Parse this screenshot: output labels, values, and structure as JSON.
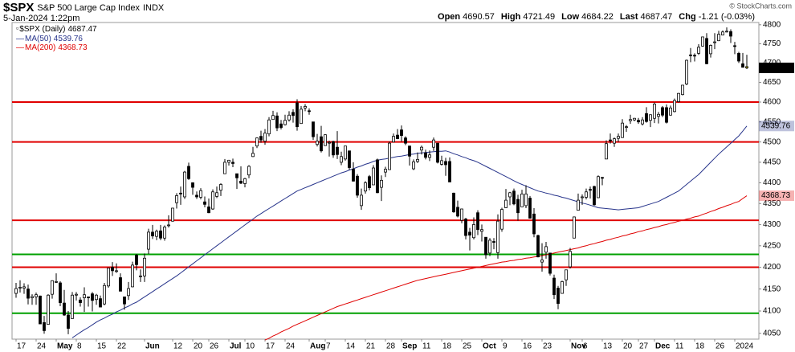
{
  "chart_data": {
    "type": "candlestick",
    "symbol": "$SPX",
    "name": "S&P 500 Large Cap Index",
    "exchange": "INDX",
    "timestamp": "5-Jan-2024 1:22pm",
    "copyright": "© StockCharts.com",
    "price_series_name": "$SPX (Daily)",
    "quote_labels": {
      "open": "Open",
      "high": "High",
      "low": "Low",
      "last": "Last",
      "change": "Chg"
    },
    "change_label": "-1.21 (-0.03%)",
    "log_scale": true,
    "ylim": [
      4037,
      4806
    ],
    "yticks": [
      4050,
      4100,
      4150,
      4200,
      4250,
      4300,
      4350,
      4400,
      4450,
      4500,
      4550,
      4600,
      4650,
      4700,
      4750,
      4800
    ],
    "up_color": "#ffffff",
    "down_color": "#000000",
    "current_color": "#f0e000",
    "categories": [
      "17",
      null,
      null,
      null,
      null,
      "24",
      null,
      null,
      null,
      null,
      "May",
      null,
      null,
      null,
      null,
      "8",
      null,
      null,
      null,
      null,
      "15",
      null,
      null,
      null,
      null,
      "22",
      null,
      null,
      null,
      null,
      null,
      null,
      "Jun",
      null,
      null,
      null,
      null,
      null,
      null,
      "12",
      null,
      null,
      null,
      null,
      "20",
      null,
      null,
      null,
      "26",
      null,
      null,
      null,
      null,
      "Jul",
      null,
      null,
      null,
      "10",
      null,
      null,
      null,
      null,
      "17",
      null,
      null,
      null,
      null,
      "24",
      null,
      null,
      null,
      null,
      null,
      "Aug",
      null,
      null,
      null,
      "7",
      null,
      null,
      null,
      null,
      "14",
      null,
      null,
      null,
      null,
      "21",
      null,
      null,
      null,
      null,
      "28",
      null,
      null,
      null,
      "Sep",
      null,
      null,
      null,
      null,
      "11",
      null,
      null,
      null,
      null,
      "18",
      null,
      null,
      null,
      null,
      "25",
      null,
      null,
      null,
      null,
      "Oct",
      null,
      null,
      null,
      null,
      "9",
      null,
      null,
      null,
      null,
      "16",
      null,
      null,
      null,
      null,
      "23",
      null,
      null,
      null,
      null,
      null,
      null,
      "Nov",
      null,
      null,
      "6",
      null,
      null,
      null,
      null,
      "13",
      null,
      null,
      null,
      null,
      "20",
      null,
      null,
      null,
      "27",
      null,
      null,
      null,
      "Dec",
      null,
      null,
      null,
      null,
      "11",
      null,
      null,
      null,
      null,
      "18",
      null,
      null,
      null,
      null,
      "26",
      null,
      null,
      null,
      null,
      "2024",
      null,
      null,
      null
    ],
    "open": [
      4140,
      4153,
      4152,
      4150,
      4130,
      4132,
      4134,
      4074,
      4070,
      4138,
      4166,
      4164,
      4118,
      4091,
      4083,
      4136,
      4125,
      4130,
      4132,
      4139,
      4126,
      4128,
      4116,
      4157,
      4200,
      4191,
      4176,
      4132,
      4135,
      4155,
      4228,
      4180,
      4180,
      4242,
      4282,
      4272,
      4285,
      4268,
      4299,
      4308,
      4352,
      4375,
      4366,
      4440,
      4400,
      4370,
      4365,
      4354,
      4342,
      4337,
      4367,
      4382,
      4422,
      4450,
      4450,
      4422,
      4404,
      4398,
      4419,
      4464,
      4490,
      4514,
      4502,
      4520,
      4556,
      4565,
      4545,
      4543,
      4555,
      4574,
      4598,
      4546,
      4585,
      4578,
      4550,
      4494,
      4513,
      4491,
      4498,
      4501,
      4487,
      4450,
      4458,
      4478,
      4433,
      4416,
      4345,
      4380,
      4415,
      4395,
      4456,
      4389,
      4426,
      4432,
      4500,
      4517,
      4530,
      4510,
      4490,
      4434,
      4452,
      4480,
      4473,
      4462,
      4487,
      4497,
      4445,
      4452,
      4452,
      4375,
      4341,
      4310,
      4313,
      4282,
      4269,
      4328,
      4284,
      4270,
      4233,
      4260,
      4234,
      4289,
      4340,
      4366,
      4380,
      4360,
      4342,
      4345,
      4363,
      4325,
      4274,
      4212,
      4235,
      4233,
      4175,
      4152,
      4140,
      4171,
      4201,
      4268,
      4334,
      4364,
      4365,
      4384,
      4391,
      4364,
      4413,
      4458,
      4505,
      4497,
      4509,
      4511,
      4538,
      4553,
      4555,
      4554,
      4545,
      4571,
      4554,
      4559,
      4564,
      4586,
      4586,
      4567,
      4576,
      4601,
      4619,
      4646,
      4721,
      4720,
      4725,
      4744,
      4764,
      4724,
      4754,
      4758,
      4773,
      4782,
      4782,
      4745,
      4725,
      4698,
      4690.57
    ],
    "high": [
      4164,
      4170,
      4163,
      4160,
      4138,
      4142,
      4135,
      4089,
      4138,
      4170,
      4186,
      4168,
      4148,
      4100,
      4143,
      4143,
      4131,
      4154,
      4132,
      4143,
      4139,
      4135,
      4164,
      4198,
      4212,
      4209,
      4186,
      4132,
      4166,
      4213,
      4231,
      4195,
      4232,
      4290,
      4299,
      4288,
      4299,
      4298,
      4322,
      4340,
      4375,
      4391,
      4429,
      4449,
      4401,
      4379,
      4387,
      4367,
      4362,
      4384,
      4391,
      4399,
      4458,
      4456,
      4459,
      4422,
      4440,
      4412,
      4443,
      4488,
      4511,
      4528,
      4532,
      4562,
      4578,
      4574,
      4555,
      4568,
      4577,
      4582,
      4607,
      4590,
      4595,
      4584,
      4550,
      4520,
      4540,
      4519,
      4503,
      4503,
      4527,
      4476,
      4490,
      4478,
      4450,
      4421,
      4386,
      4404,
      4419,
      4443,
      4459,
      4418,
      4439,
      4501,
      4521,
      4532,
      4541,
      4514,
      4490,
      4457,
      4474,
      4491,
      4481,
      4479,
      4511,
      4497,
      4466,
      4461,
      4462,
      4376,
      4357,
      4338,
      4316,
      4292,
      4317,
      4334,
      4300,
      4270,
      4268,
      4268,
      4324,
      4340,
      4385,
      4378,
      4386,
      4371,
      4383,
      4394,
      4368,
      4339,
      4276,
      4256,
      4259,
      4233,
      4183,
      4157,
      4169,
      4194,
      4245,
      4319,
      4374,
      4372,
      4386,
      4391,
      4393,
      4418,
      4414,
      4504,
      4521,
      4511,
      4521,
      4557,
      4542,
      4568,
      4560,
      4560,
      4562,
      4587,
      4569,
      4599,
      4575,
      4590,
      4594,
      4591,
      4609,
      4623,
      4643,
      4709,
      4739,
      4725,
      4749,
      4768,
      4778,
      4748,
      4778,
      4784,
      4785,
      4793,
      4788,
      4755,
      4729,
      4726,
      4721.49
    ],
    "low": [
      4130,
      4142,
      4139,
      4115,
      4114,
      4114,
      4071,
      4049,
      4070,
      4128,
      4164,
      4111,
      4089,
      4048,
      4083,
      4124,
      4110,
      4098,
      4110,
      4099,
      4114,
      4109,
      4113,
      4153,
      4180,
      4187,
      4145,
      4103,
      4125,
      4154,
      4193,
      4166,
      4166,
      4231,
      4266,
      4263,
      4263,
      4262,
      4293,
      4307,
      4338,
      4347,
      4361,
      4407,
      4371,
      4361,
      4360,
      4341,
      4327,
      4335,
      4363,
      4368,
      4422,
      4442,
      4438,
      4385,
      4397,
      4389,
      4411,
      4463,
      4485,
      4498,
      4493,
      4514,
      4556,
      4527,
      4531,
      4541,
      4551,
      4548,
      4528,
      4545,
      4577,
      4568,
      4505,
      4489,
      4474,
      4491,
      4464,
      4461,
      4458,
      4443,
      4454,
      4432,
      4403,
      4364,
      4335,
      4374,
      4382,
      4395,
      4375,
      4356,
      4414,
      4432,
      4499,
      4507,
      4501,
      4492,
      4442,
      4431,
      4448,
      4469,
      4457,
      4453,
      4478,
      4447,
      4442,
      4417,
      4402,
      4328,
      4317,
      4303,
      4265,
      4239,
      4265,
      4275,
      4260,
      4220,
      4226,
      4242,
      4220,
      4283,
      4339,
      4346,
      4346,
      4309,
      4342,
      4339,
      4314,
      4270,
      4223,
      4190,
      4220,
      4181,
      4127,
      4104,
      4140,
      4157,
      4197,
      4268,
      4334,
      4347,
      4360,
      4362,
      4345,
      4363,
      4394,
      4458,
      4496,
      4488,
      4500,
      4510,
      4525,
      4545,
      4552,
      4545,
      4541,
      4548,
      4537,
      4547,
      4546,
      4562,
      4546,
      4566,
      4574,
      4599,
      4617,
      4643,
      4702,
      4704,
      4721,
      4743,
      4697,
      4714,
      4736,
      4757,
      4775,
      4780,
      4752,
      4723,
      4700,
      4688,
      4684.22
    ],
    "close": [
      4151,
      4154,
      4155,
      4129,
      4133,
      4137,
      4071,
      4056,
      4136,
      4169,
      4167,
      4119,
      4091,
      4061,
      4136,
      4138,
      4119,
      4137,
      4130,
      4124,
      4136,
      4109,
      4158,
      4198,
      4192,
      4192,
      4145,
      4116,
      4151,
      4205,
      4206,
      4180,
      4221,
      4282,
      4273,
      4284,
      4268,
      4294,
      4299,
      4339,
      4369,
      4373,
      4426,
      4410,
      4389,
      4366,
      4381,
      4348,
      4328,
      4378,
      4376,
      4396,
      4450,
      4455,
      4447,
      4412,
      4399,
      4410,
      4440,
      4472,
      4510,
      4505,
      4522,
      4555,
      4566,
      4535,
      4536,
      4554,
      4567,
      4566,
      4538,
      4582,
      4589,
      4577,
      4513,
      4502,
      4478,
      4518,
      4499,
      4468,
      4469,
      4464,
      4490,
      4437,
      4404,
      4370,
      4370,
      4400,
      4388,
      4436,
      4376,
      4406,
      4433,
      4497,
      4514,
      4508,
      4516,
      4497,
      4465,
      4451,
      4457,
      4487,
      4462,
      4468,
      4505,
      4450,
      4454,
      4444,
      4402,
      4330,
      4320,
      4337,
      4274,
      4275,
      4300,
      4288,
      4288,
      4229,
      4263,
      4258,
      4308,
      4336,
      4358,
      4376,
      4349,
      4328,
      4373,
      4373,
      4315,
      4278,
      4224,
      4217,
      4248,
      4186,
      4137,
      4117,
      4167,
      4194,
      4237,
      4318,
      4358,
      4366,
      4378,
      4383,
      4347,
      4415,
      4411,
      4496,
      4503,
      4508,
      4514,
      4547,
      4538,
      4556,
      4559,
      4550,
      4555,
      4551,
      4568,
      4595,
      4569,
      4567,
      4549,
      4585,
      4604,
      4622,
      4643,
      4707,
      4720,
      4719,
      4741,
      4768,
      4698,
      4746,
      4755,
      4775,
      4781,
      4783,
      4770,
      4743,
      4705,
      4689,
      4687.47
    ],
    "series": [
      {
        "name": "MA(50)",
        "color": "#27348b",
        "values": [
          null,
          null,
          null,
          null,
          null,
          null,
          null,
          null,
          null,
          null,
          null,
          null,
          null,
          null,
          4040,
          4046,
          4052,
          4058,
          4063,
          4069,
          4075,
          4080,
          4084,
          4089,
          4093,
          4098,
          4102,
          4107,
          4111,
          4116,
          4120,
          4126,
          4132,
          4138,
          4144,
          4150,
          4156,
          4162,
          4168,
          4174,
          4180,
          4187,
          4194,
          4201,
          4208,
          4215,
          4222,
          4229,
          4236,
          4243,
          4250,
          4257,
          4264,
          4271,
          4278,
          4285,
          4292,
          4299,
          4306,
          4313,
          4320,
          4326,
          4332,
          4338,
          4344,
          4350,
          4356,
          4362,
          4368,
          4374,
          4380,
          4384,
          4388,
          4392,
          4396,
          4400,
          4404,
          4408,
          4412,
          4416,
          4420,
          4424,
          4427,
          4431,
          4434,
          4438,
          4441,
          4445,
          4448,
          4452,
          4455,
          4457,
          4458,
          4460,
          4462,
          4464,
          4465,
          4467,
          4469,
          4470,
          4472,
          4473,
          4474,
          4475,
          4476,
          4477,
          4477,
          4478,
          4475,
          4471,
          4468,
          4464,
          4461,
          4457,
          4454,
          4450,
          4445,
          4440,
          4435,
          4430,
          4425,
          4420,
          4415,
          4410,
          4405,
          4400,
          4396,
          4392,
          4388,
          4384,
          4380,
          4378,
          4375,
          4373,
          4370,
          4368,
          4365,
          4363,
          4360,
          4357,
          4354,
          4351,
          4349,
          4346,
          4343,
          4340,
          4339,
          4338,
          4337,
          4336,
          4335,
          4336,
          4337,
          4338,
          4339,
          4340,
          4343,
          4346,
          4349,
          4352,
          4355,
          4360,
          4365,
          4370,
          4375,
          4380,
          4388,
          4396,
          4404,
          4412,
          4420,
          4430,
          4440,
          4450,
          4460,
          4470,
          4479,
          4488,
          4497,
          4506,
          4515,
          4527,
          4539.76
        ]
      },
      {
        "name": "MA(200)",
        "color": "#e00000",
        "values": [
          null,
          null,
          null,
          null,
          null,
          null,
          null,
          null,
          null,
          null,
          null,
          null,
          null,
          null,
          null,
          null,
          null,
          null,
          null,
          null,
          null,
          null,
          null,
          null,
          null,
          null,
          null,
          null,
          null,
          null,
          null,
          null,
          null,
          null,
          null,
          null,
          null,
          null,
          null,
          null,
          null,
          null,
          null,
          null,
          null,
          null,
          null,
          null,
          null,
          null,
          null,
          null,
          null,
          null,
          null,
          null,
          null,
          null,
          null,
          null,
          null,
          null,
          4035,
          4039,
          4044,
          4048,
          4053,
          4057,
          4061,
          4066,
          4070,
          4074,
          4078,
          4082,
          4086,
          4090,
          4094,
          4098,
          4102,
          4106,
          4110,
          4113,
          4116,
          4119,
          4122,
          4125,
          4128,
          4131,
          4134,
          4137,
          4140,
          4143,
          4146,
          4149,
          4152,
          4155,
          4158,
          4161,
          4164,
          4167,
          4170,
          4172,
          4174,
          4176,
          4178,
          4180,
          4182,
          4184,
          4186,
          4188,
          4190,
          4192,
          4194,
          4196,
          4198,
          4200,
          4202,
          4204,
          4206,
          4208,
          4210,
          4212,
          4213,
          4215,
          4216,
          4218,
          4219,
          4221,
          4222,
          4224,
          4225,
          4227,
          4229,
          4231,
          4233,
          4235,
          4237,
          4239,
          4241,
          4243,
          4245,
          4248,
          4250,
          4253,
          4255,
          4258,
          4260,
          4263,
          4265,
          4268,
          4270,
          4273,
          4275,
          4278,
          4280,
          4283,
          4285,
          4288,
          4290,
          4293,
          4295,
          4298,
          4300,
          4303,
          4305,
          4308,
          4310,
          4313,
          4315,
          4318,
          4320,
          4324,
          4327,
          4331,
          4334,
          4338,
          4341,
          4345,
          4348,
          4352,
          4355,
          4362,
          4368.73
        ]
      }
    ],
    "levels": [
      {
        "value": 4600,
        "color": "#e00000"
      },
      {
        "value": 4500,
        "color": "#e00000"
      },
      {
        "value": 4310,
        "color": "#e00000"
      },
      {
        "value": 4230,
        "color": "#00a000"
      },
      {
        "value": 4200,
        "color": "#e00000"
      },
      {
        "value": 4095,
        "color": "#00a000"
      }
    ]
  }
}
